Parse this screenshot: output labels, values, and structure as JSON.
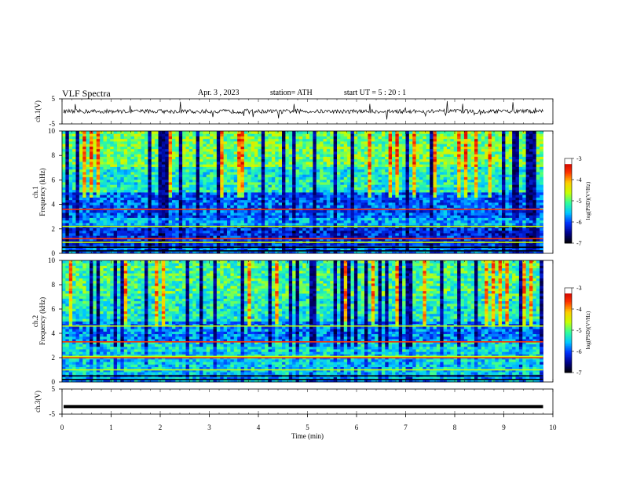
{
  "header": {
    "title": "VLF  Spectra",
    "date": "Apr. 3   , 2023",
    "station": "station= ATH",
    "start": "start  UT  =    5  : 20 : 1"
  },
  "chart_data": [
    {
      "type": "line",
      "name": "ch1-waveform",
      "ylabel": "ch.1(V)",
      "ylim": [
        -5,
        5
      ],
      "yticks": [
        "5",
        "-5"
      ],
      "xlim": [
        0,
        10
      ],
      "description_values": {
        "baseline": 0,
        "record_end_min": 9.8
      }
    },
    {
      "type": "heatmap",
      "name": "ch1-spectrogram",
      "ylabel": "ch.1\nFrequency  (kHz)",
      "ylim": [
        0,
        10
      ],
      "yticks": [
        "0",
        "2",
        "4",
        "6",
        "8",
        "10"
      ],
      "xlim": [
        0,
        10
      ],
      "record_end_min": 9.8,
      "colorbar": {
        "label": "log(PSD)(V²/Hz)",
        "range": [
          -7,
          -3
        ],
        "ticks": [
          "-3",
          "-4",
          "-5",
          "-6",
          "-7"
        ]
      }
    },
    {
      "type": "heatmap",
      "name": "ch2-spectrogram",
      "ylabel": "ch.2\nFrequency  (kHz)",
      "ylim": [
        0,
        10
      ],
      "yticks": [
        "0",
        "2",
        "4",
        "6",
        "8",
        "10"
      ],
      "xlim": [
        0,
        10
      ],
      "record_end_min": 9.8,
      "colorbar": {
        "label": "log(PSD)(V²/Hz)",
        "range": [
          -7,
          -3
        ],
        "ticks": [
          "-3",
          "-4",
          "-5",
          "-6",
          "-7"
        ]
      }
    },
    {
      "type": "line",
      "name": "ch3-waveform",
      "ylabel": "ch.3(V)",
      "ylim": [
        -5,
        5
      ],
      "yticks": [
        "5",
        "-5"
      ],
      "xlim": [
        0,
        10
      ],
      "xlabel": "Time  (min)",
      "xticks": [
        "0",
        "1",
        "2",
        "3",
        "4",
        "5",
        "6",
        "7",
        "8",
        "9",
        "10"
      ],
      "description_values": {
        "level": -2,
        "record_end_min": 9.8
      }
    }
  ],
  "colors": {
    "colormap": [
      "#000000",
      "#00008b",
      "#0033ff",
      "#00c8ff",
      "#33ff99",
      "#c8ff00",
      "#ffcc00",
      "#ff3300",
      "#cc0000",
      "#ffffff"
    ]
  }
}
